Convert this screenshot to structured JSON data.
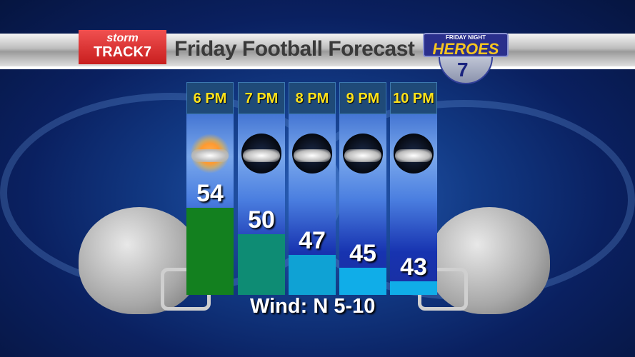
{
  "header": {
    "brand_top": "storm",
    "brand_bottom": "TRACK7",
    "title": "Friday Football Forecast",
    "logo": {
      "top": "FRIDAY NIGHT",
      "main": "HEROES",
      "channel": "7"
    }
  },
  "chart_data": {
    "type": "bar",
    "categories": [
      "6 PM",
      "7 PM",
      "8 PM",
      "9 PM",
      "10 PM"
    ],
    "values": [
      54,
      50,
      47,
      45,
      43
    ],
    "conditions": [
      "partly-sunny-icon",
      "night-partly-cloudy-icon",
      "night-mostly-cloudy-icon",
      "night-mostly-cloudy-icon",
      "night-mostly-cloudy-icon"
    ],
    "bar_colors": [
      "#13801f",
      "#0e8c74",
      "#0fa2d4",
      "#10ade8",
      "#10ade8"
    ]
  },
  "footer": {
    "wind": "Wind: N 5-10"
  }
}
